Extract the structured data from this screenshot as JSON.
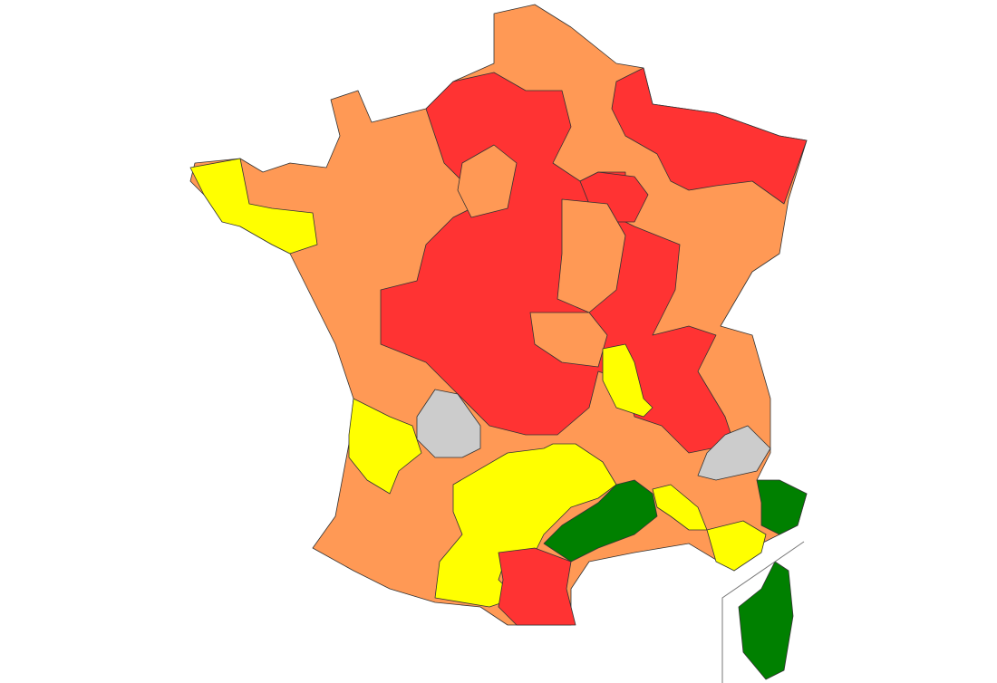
{
  "map": {
    "colors": {
      "orange": "#ff9955",
      "red": "#ff3333",
      "yellow": "#ffff00",
      "green": "#008000",
      "gray": "#cccccc",
      "border": "#333333",
      "inset_line": "#777777"
    },
    "regions": [
      {
        "id": "mainland",
        "level": "orange"
      },
      {
        "id": "north-central",
        "level": "red"
      },
      {
        "id": "north-east",
        "level": "red"
      },
      {
        "id": "ardennes-champagne",
        "level": "red"
      },
      {
        "id": "paris-west",
        "level": "orange"
      },
      {
        "id": "burgundy-center",
        "level": "orange"
      },
      {
        "id": "auvergne-north",
        "level": "orange"
      },
      {
        "id": "brittany-west",
        "level": "yellow"
      },
      {
        "id": "gironde",
        "level": "yellow"
      },
      {
        "id": "south-west",
        "level": "yellow"
      },
      {
        "id": "rhone",
        "level": "yellow"
      },
      {
        "id": "vaucluse",
        "level": "yellow"
      },
      {
        "id": "var",
        "level": "yellow"
      },
      {
        "id": "languedoc",
        "level": "green"
      },
      {
        "id": "alpes-maritimes",
        "level": "green"
      },
      {
        "id": "corsica",
        "level": "green"
      },
      {
        "id": "pyrenees-east",
        "level": "red"
      },
      {
        "id": "dordogne",
        "level": "gray"
      },
      {
        "id": "hautes-alpes",
        "level": "gray"
      }
    ]
  }
}
